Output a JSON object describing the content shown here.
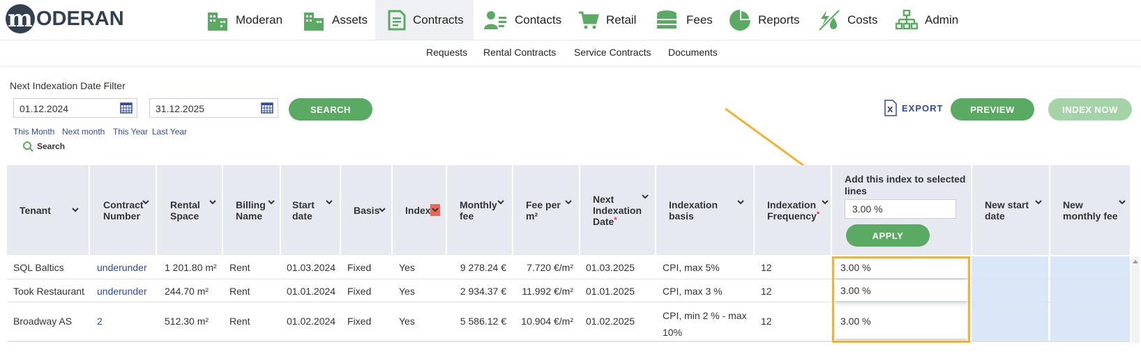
{
  "app": {
    "logo_letter": "m",
    "logo_text": "ODERAN"
  },
  "nav": [
    {
      "label": "Moderan",
      "icon": "buildings-icon"
    },
    {
      "label": "Assets",
      "icon": "buildings-icon"
    },
    {
      "label": "Contracts",
      "icon": "document-icon"
    },
    {
      "label": "Contacts",
      "icon": "contact-card-icon"
    },
    {
      "label": "Retail",
      "icon": "shopping-cart-icon"
    },
    {
      "label": "Fees",
      "icon": "coins-icon"
    },
    {
      "label": "Reports",
      "icon": "pie-chart-icon"
    },
    {
      "label": "Costs",
      "icon": "costs-icon"
    },
    {
      "label": "Admin",
      "icon": "org-chart-icon"
    }
  ],
  "active_nav": "Contracts",
  "subnav": [
    "Requests",
    "Rental Contracts",
    "Service Contracts",
    "Documents"
  ],
  "filter": {
    "title": "Next Indexation Date Filter",
    "date_from": "01.12.2024",
    "date_to": "31.12.2025",
    "search_button": "SEARCH",
    "quick_links": [
      "This Month",
      "Next month",
      "This Year",
      "Last Year"
    ],
    "search_link": "Search"
  },
  "actions": {
    "export": "EXPORT",
    "preview": "PREVIEW",
    "index_now": "INDEX NOW"
  },
  "table": {
    "headers": {
      "tenant": "Tenant",
      "contract_number": "Contract Number",
      "rental_space": "Rental Space",
      "billing_name": "Billing Name",
      "start_date": "Start date",
      "basis": "Basis",
      "index": "Index",
      "monthly_fee": "Monthly fee",
      "fee_per_m2": "Fee per m²",
      "next_indexation_date": "Next Indexation Date",
      "indexation_basis": "Indexation basis",
      "indexation_frequency": "Indexation Frequency",
      "add_index": "Add this index to selected lines",
      "new_start_date": "New start date",
      "new_monthly_fee": "New monthly fee"
    },
    "add_index_value": "3.00 %",
    "apply_button": "APPLY",
    "rows": [
      {
        "tenant": "SQL Baltics",
        "contract_number": "underunder",
        "rental_space": "1 201.80 m²",
        "billing_name": "Rent",
        "start_date": "01.03.2024",
        "basis": "Fixed",
        "index": "Yes",
        "monthly_fee": "9 278.24 €",
        "fee_per_m2": "7.720 €/m²",
        "next_indexation_date": "01.03.2025",
        "indexation_basis": "CPI, max 5%",
        "indexation_frequency": "12",
        "new_index": "3.00 %"
      },
      {
        "tenant": "Took Restaurant",
        "contract_number": "underunder",
        "rental_space": "244.70 m²",
        "billing_name": "Rent",
        "start_date": "01.01.2024",
        "basis": "Fixed",
        "index": "Yes",
        "monthly_fee": "2 934.37 €",
        "fee_per_m2": "11.992 €/m²",
        "next_indexation_date": "01.01.2025",
        "indexation_basis": "CPI, max 3 %",
        "indexation_frequency": "12",
        "new_index": "3.00 %"
      },
      {
        "tenant": "Broadway AS",
        "contract_number": "2",
        "rental_space": "512.30 m²",
        "billing_name": "Rent",
        "start_date": "01.02.2024",
        "basis": "Fixed",
        "index": "Yes",
        "monthly_fee": "5 586.12 €",
        "fee_per_m2": "10.904 €/m²",
        "next_indexation_date": "01.02.2025",
        "indexation_basis": "CPI, min 2 % - max 10%",
        "indexation_frequency": "12",
        "new_index": "3.00 %"
      }
    ]
  },
  "colors": {
    "brand_green": "#5aaa63",
    "accent_orange": "#f2b233",
    "link_blue": "#2f4aa0",
    "header_bg": "#e7e9f1"
  }
}
